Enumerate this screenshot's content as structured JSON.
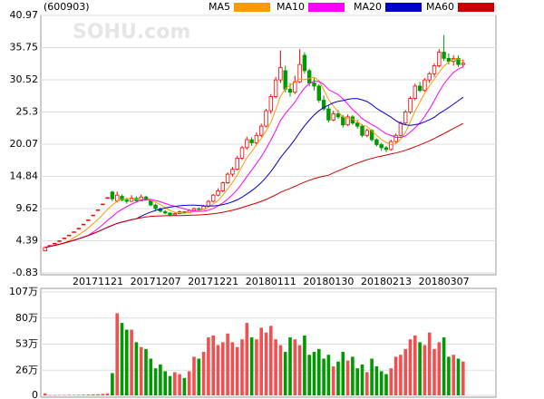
{
  "chart_data": [
    {
      "type": "candlestick",
      "symbol": "(600903)",
      "watermark": "SOHU.com",
      "ylim": [
        -0.83,
        40.97
      ],
      "yticks": [
        40.97,
        35.75,
        30.52,
        25.3,
        20.07,
        14.84,
        9.62,
        4.39,
        -0.83
      ],
      "grid": true,
      "up_color": "#ff0000",
      "down_color": "#009900",
      "moving_averages": [
        {
          "name": "MA5",
          "color": "#ff9900"
        },
        {
          "name": "MA10",
          "color": "#ff00ff"
        },
        {
          "name": "MA20",
          "color": "#0000cc"
        },
        {
          "name": "MA60",
          "color": "#cc0000"
        }
      ],
      "categories": [
        null,
        null,
        null,
        null,
        null,
        null,
        null,
        null,
        null,
        null,
        null,
        "20171121",
        null,
        null,
        null,
        null,
        null,
        null,
        null,
        null,
        null,
        null,
        null,
        "20171207",
        null,
        null,
        null,
        null,
        null,
        null,
        null,
        null,
        null,
        null,
        null,
        "20171221",
        null,
        null,
        null,
        null,
        null,
        null,
        null,
        null,
        null,
        null,
        null,
        "20180111",
        null,
        null,
        null,
        null,
        null,
        null,
        null,
        null,
        null,
        null,
        null,
        "20180130",
        null,
        null,
        null,
        null,
        null,
        null,
        null,
        null,
        null,
        null,
        null,
        "20180213",
        null,
        null,
        null,
        null,
        null,
        null,
        null,
        null,
        null,
        null,
        null,
        "20180307",
        null,
        null,
        null,
        null
      ],
      "open": [
        2.75,
        3.63,
        3.99,
        4.39,
        4.83,
        5.31,
        5.85,
        6.43,
        7.08,
        7.78,
        8.56,
        9.42,
        10.36,
        11.4,
        12.3,
        10.9,
        11.6,
        11.0,
        10.8,
        11.3,
        10.9,
        11.5,
        10.9,
        10.2,
        9.6,
        9.1,
        8.9,
        8.6,
        8.8,
        9.1,
        9.0,
        9.3,
        9.6,
        9.5,
        10.0,
        10.8,
        11.8,
        12.5,
        13.8,
        15.2,
        16.0,
        17.8,
        19.5,
        20.8,
        20.3,
        21.5,
        23.0,
        25.5,
        27.8,
        30.5,
        32.0,
        29.0,
        28.5,
        30.2,
        34.5,
        32.0,
        30.0,
        29.5,
        27.2,
        25.8,
        24.0,
        25.0,
        24.5,
        23.2,
        24.5,
        23.5,
        23.0,
        21.5,
        22.3,
        20.8,
        20.0,
        19.5,
        19.2,
        20.5,
        21.5,
        23.5,
        25.3,
        27.5,
        29.5,
        28.8,
        30.5,
        31.5,
        32.8,
        35.0,
        34.0,
        33.5,
        34.0,
        33.0
      ],
      "high": [
        3.3,
        3.63,
        3.99,
        4.39,
        4.83,
        5.31,
        5.85,
        6.43,
        7.08,
        7.78,
        8.56,
        9.42,
        10.36,
        11.4,
        12.5,
        12.4,
        11.9,
        11.4,
        11.8,
        11.6,
        11.9,
        11.7,
        11.0,
        10.4,
        9.8,
        9.4,
        9.0,
        9.0,
        9.3,
        9.2,
        9.5,
        9.8,
        9.8,
        10.2,
        11.0,
        12.0,
        12.9,
        14.0,
        15.5,
        16.4,
        18.2,
        19.8,
        21.3,
        21.2,
        22.0,
        23.4,
        25.8,
        28.2,
        31.0,
        35.3,
        32.8,
        30.0,
        31.2,
        35.5,
        35.0,
        32.3,
        30.8,
        29.8,
        28.0,
        26.3,
        25.5,
        25.6,
        24.8,
        24.9,
        24.8,
        24.0,
        23.3,
        22.6,
        22.5,
        21.0,
        20.3,
        19.8,
        20.8,
        21.8,
        23.8,
        25.6,
        27.8,
        29.9,
        30.2,
        30.8,
        31.8,
        33.2,
        35.5,
        37.8,
        34.8,
        34.5,
        34.5,
        33.8
      ],
      "low": [
        2.75,
        3.63,
        3.99,
        4.39,
        4.83,
        5.31,
        5.85,
        6.43,
        7.08,
        7.78,
        8.56,
        9.42,
        10.36,
        11.4,
        10.8,
        10.6,
        10.8,
        10.4,
        10.7,
        10.7,
        10.8,
        10.9,
        10.0,
        9.4,
        9.0,
        8.7,
        8.4,
        8.4,
        8.7,
        8.8,
        8.9,
        9.2,
        9.3,
        9.4,
        9.9,
        10.6,
        11.6,
        12.3,
        13.6,
        14.8,
        15.8,
        17.5,
        19.2,
        19.8,
        20.0,
        21.2,
        22.8,
        25.0,
        27.5,
        30.0,
        28.5,
        27.8,
        28.2,
        30.0,
        31.5,
        29.5,
        28.8,
        26.8,
        25.5,
        23.6,
        23.8,
        24.2,
        22.8,
        23.0,
        23.2,
        22.6,
        21.2,
        21.2,
        20.5,
        19.7,
        19.0,
        18.8,
        19.0,
        20.3,
        21.3,
        23.2,
        25.0,
        27.2,
        28.5,
        28.6,
        30.0,
        31.0,
        32.5,
        33.6,
        33.0,
        32.8,
        32.6,
        32.5
      ],
      "close": [
        3.3,
        3.63,
        3.99,
        4.39,
        4.83,
        5.31,
        5.85,
        6.43,
        7.08,
        7.78,
        8.56,
        9.42,
        10.36,
        11.4,
        11.2,
        11.8,
        11.0,
        10.8,
        11.3,
        10.9,
        11.5,
        11.0,
        10.2,
        9.6,
        9.2,
        8.9,
        8.6,
        8.8,
        9.1,
        9.0,
        9.3,
        9.6,
        9.5,
        10.0,
        10.8,
        11.8,
        12.5,
        13.8,
        15.2,
        16.0,
        17.8,
        19.5,
        20.8,
        20.3,
        21.5,
        23.0,
        25.5,
        27.8,
        30.5,
        32.5,
        29.0,
        28.5,
        30.2,
        33.0,
        32.0,
        30.0,
        29.5,
        27.2,
        25.8,
        24.0,
        25.0,
        24.5,
        23.2,
        24.5,
        23.5,
        23.0,
        21.5,
        22.3,
        20.8,
        20.0,
        19.5,
        19.2,
        20.5,
        21.5,
        23.5,
        25.3,
        27.5,
        29.5,
        28.8,
        30.5,
        31.5,
        32.8,
        35.0,
        34.0,
        33.5,
        34.0,
        33.0,
        33.2
      ]
    },
    {
      "type": "bar",
      "ylim": [
        0,
        107
      ],
      "yticks": [
        {
          "value": 107,
          "label": "107万"
        },
        {
          "value": 80,
          "label": "80万"
        },
        {
          "value": 53,
          "label": "53万"
        },
        {
          "value": 26,
          "label": "26万"
        },
        0
      ],
      "grid": true,
      "up_color": "#f05050",
      "down_color": "#009900",
      "values": [
        2,
        0.3,
        0.3,
        0.4,
        0.4,
        0.5,
        0.5,
        0.6,
        0.7,
        0.8,
        1,
        1.2,
        1.5,
        2,
        23,
        85,
        75,
        68,
        68,
        55,
        50,
        48,
        38,
        28,
        32,
        25,
        20,
        24,
        22,
        18,
        25,
        40,
        38,
        45,
        60,
        62,
        52,
        55,
        64,
        55,
        50,
        58,
        75,
        60,
        58,
        70,
        65,
        72,
        58,
        52,
        45,
        60,
        58,
        52,
        62,
        42,
        45,
        48,
        38,
        42,
        30,
        35,
        45,
        36,
        40,
        28,
        32,
        24,
        38,
        30,
        25,
        22,
        28,
        40,
        42,
        48,
        58,
        62,
        55,
        52,
        65,
        48,
        55,
        60,
        40,
        42,
        38,
        35
      ]
    }
  ]
}
